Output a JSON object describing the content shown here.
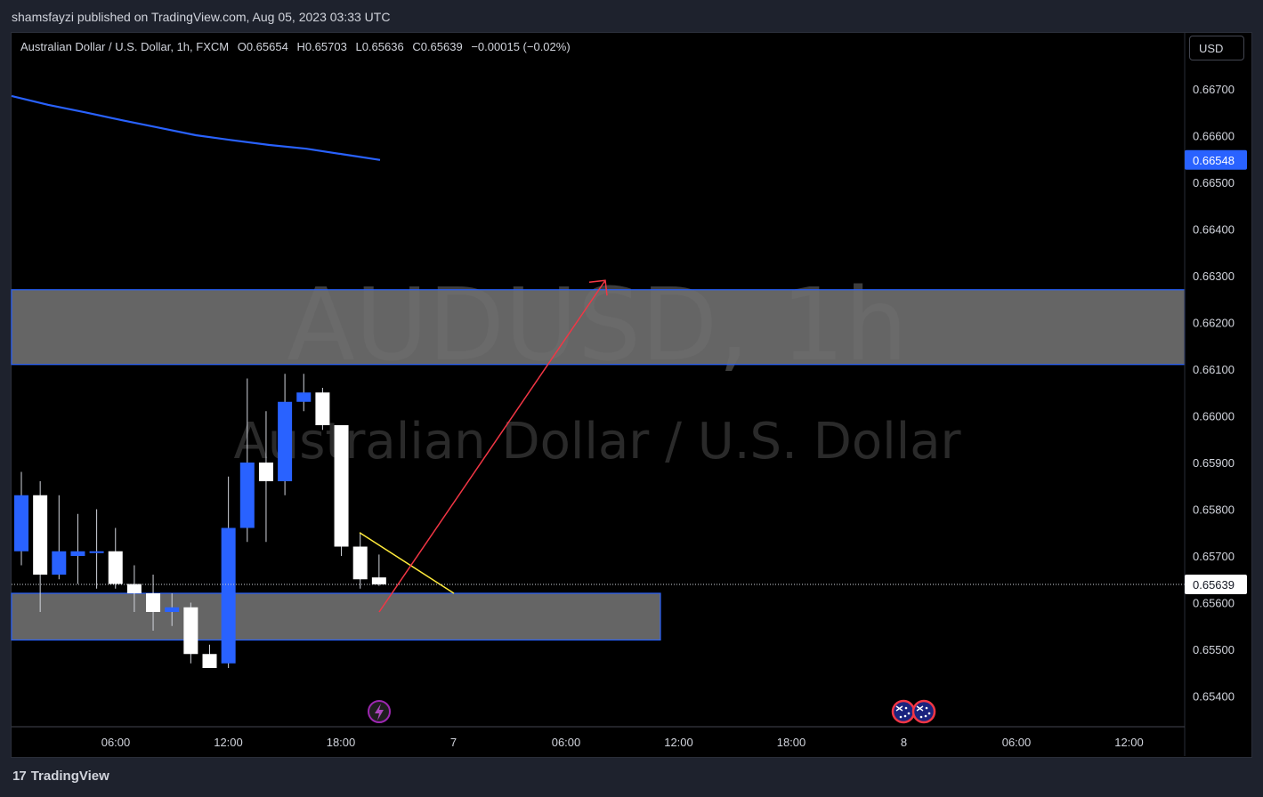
{
  "publisher_line": "shamsfayzi published on TradingView.com, Aug 05, 2023 03:33 UTC",
  "legend": {
    "title": "Australian Dollar / U.S. Dollar, 1h, FXCM",
    "open_label": "O",
    "open": "0.65654",
    "high_label": "H",
    "high": "0.65703",
    "low_label": "L",
    "low": "0.65636",
    "close_label": "C",
    "close": "0.65639",
    "change": "−0.00015 (−0.02%)"
  },
  "currency_button": "USD",
  "watermark": {
    "symbol": "AUDUSD, 1h",
    "description": "Australian Dollar / U.S. Dollar"
  },
  "footer_logo_mark": "17",
  "footer_logo_text": "TradingView",
  "colors": {
    "up": "#2962ff",
    "down": "#ffffff",
    "ma_line": "#2962ff",
    "zone_fill": "#6e6e6e",
    "zone_border": "#2962ff",
    "arrow": "#f23645",
    "trendline": "#ffeb3b"
  },
  "icons": [
    "lightning-icon",
    "australia-flag-icon",
    "australia-flag-icon"
  ],
  "chart_data": {
    "type": "candlestick",
    "symbol": "AUDUSD",
    "interval": "1h",
    "ylim": [
      0.6532,
      0.6675
    ],
    "y_ticks": [
      "0.66700",
      "0.66600",
      "0.66500",
      "0.66400",
      "0.66300",
      "0.66200",
      "0.66100",
      "0.66000",
      "0.65900",
      "0.65800",
      "0.65700",
      "0.65600",
      "0.65500",
      "0.65400"
    ],
    "x_ticks": [
      "06:00",
      "12:00",
      "18:00",
      "7",
      "06:00",
      "12:00",
      "18:00",
      "8",
      "06:00",
      "12:00"
    ],
    "ma_label": "0.66548",
    "last_price_label": "0.65639",
    "last_price": 0.65639,
    "candles": [
      {
        "o": 0.6571,
        "h": 0.6588,
        "l": 0.6568,
        "c": 0.6583
      },
      {
        "o": 0.6583,
        "h": 0.6586,
        "l": 0.6558,
        "c": 0.6566
      },
      {
        "o": 0.6566,
        "h": 0.6583,
        "l": 0.6565,
        "c": 0.6571
      },
      {
        "o": 0.657,
        "h": 0.6579,
        "l": 0.6564,
        "c": 0.6571
      },
      {
        "o": 0.6571,
        "h": 0.658,
        "l": 0.6563,
        "c": 0.6571
      },
      {
        "o": 0.6571,
        "h": 0.6576,
        "l": 0.6563,
        "c": 0.6564
      },
      {
        "o": 0.6564,
        "h": 0.6568,
        "l": 0.6558,
        "c": 0.6562
      },
      {
        "o": 0.6562,
        "h": 0.6566,
        "l": 0.6554,
        "c": 0.6558
      },
      {
        "o": 0.6558,
        "h": 0.6562,
        "l": 0.6555,
        "c": 0.6559
      },
      {
        "o": 0.6559,
        "h": 0.656,
        "l": 0.6547,
        "c": 0.6549
      },
      {
        "o": 0.6549,
        "h": 0.6551,
        "l": 0.6546,
        "c": 0.6546
      },
      {
        "o": 0.6547,
        "h": 0.6587,
        "l": 0.6546,
        "c": 0.6576
      },
      {
        "o": 0.6576,
        "h": 0.6608,
        "l": 0.6573,
        "c": 0.659
      },
      {
        "o": 0.659,
        "h": 0.6601,
        "l": 0.6573,
        "c": 0.6586
      },
      {
        "o": 0.6586,
        "h": 0.6609,
        "l": 0.6583,
        "c": 0.6603
      },
      {
        "o": 0.6603,
        "h": 0.6609,
        "l": 0.6601,
        "c": 0.6605
      },
      {
        "o": 0.6605,
        "h": 0.6606,
        "l": 0.6597,
        "c": 0.6598
      },
      {
        "o": 0.6598,
        "h": 0.6598,
        "l": 0.657,
        "c": 0.6572
      },
      {
        "o": 0.6572,
        "h": 0.6575,
        "l": 0.6563,
        "c": 0.6565
      },
      {
        "o": 0.65654,
        "h": 0.65703,
        "l": 0.65636,
        "c": 0.65639
      }
    ],
    "ma_series": [
      0.66685,
      0.66666,
      0.6665,
      0.66633,
      0.66617,
      0.66601,
      0.6659,
      0.6658,
      0.66572,
      0.6656,
      0.66548
    ],
    "zones": [
      {
        "from": 0.6611,
        "to": 0.6627,
        "extends_to_edge": true
      },
      {
        "from": 0.6552,
        "to": 0.6562,
        "extends_to_edge": false
      }
    ],
    "trendline": {
      "from": 0.6575,
      "to": 0.6562
    },
    "arrow": {
      "from": 0.6558,
      "to": 0.6629
    },
    "grid": false
  }
}
